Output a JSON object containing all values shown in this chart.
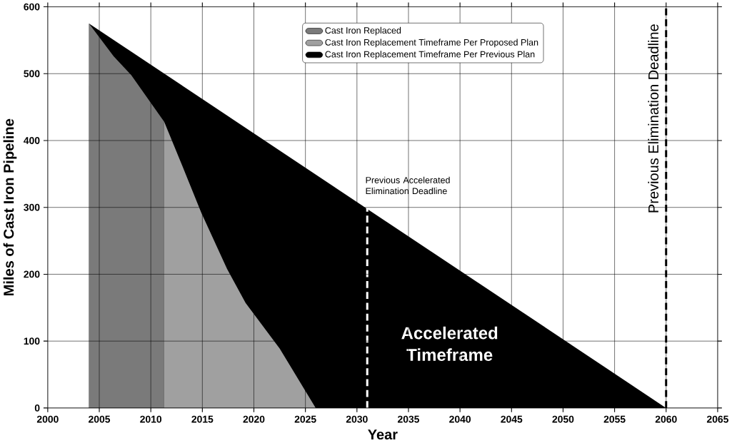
{
  "chart_data": {
    "type": "area",
    "xlabel": "Year",
    "ylabel": "Miles of Cast Iron Pipeline",
    "xlim": [
      2000,
      2065
    ],
    "xticks": [
      2000,
      2005,
      2010,
      2015,
      2020,
      2025,
      2030,
      2035,
      2040,
      2045,
      2050,
      2055,
      2060,
      2065
    ],
    "ylim": [
      0,
      600
    ],
    "yticks": [
      0,
      100,
      200,
      300,
      400,
      500,
      600
    ],
    "grid": true,
    "legend": "top",
    "series": [
      {
        "name": "Cast Iron Replaced",
        "color": "#7a7a7a",
        "x": [
          2004,
          2006.4,
          2008.1,
          2010.2,
          2011.3
        ],
        "values": [
          575,
          526,
          498,
          452,
          428
        ]
      },
      {
        "name": "Cast Iron Replacement Timeframe Per Proposed Plan",
        "color": "#a0a0a0",
        "x": [
          2011.3,
          2012.9,
          2014.9,
          2017.4,
          2019.2,
          2022.5,
          2026
        ],
        "values": [
          428,
          368,
          292,
          208,
          157,
          89,
          0
        ]
      },
      {
        "name": "Cast Iron Replacement Timeframe Per Previous Plan",
        "color": "#000000",
        "x": [
          2004,
          2060
        ],
        "values": [
          575,
          0
        ]
      }
    ],
    "ref_lines": [
      {
        "axis": "x",
        "value": 2031,
        "label": "Previous Accelerated Elimination Deadline",
        "color": "#ffffff",
        "line_style": "dashed"
      },
      {
        "axis": "x",
        "value": 2060,
        "label": "Previous Elimination Deadline",
        "color": "#000000",
        "line_style": "dashed"
      }
    ],
    "annotations": [
      "Accelerated Timeframe"
    ]
  }
}
